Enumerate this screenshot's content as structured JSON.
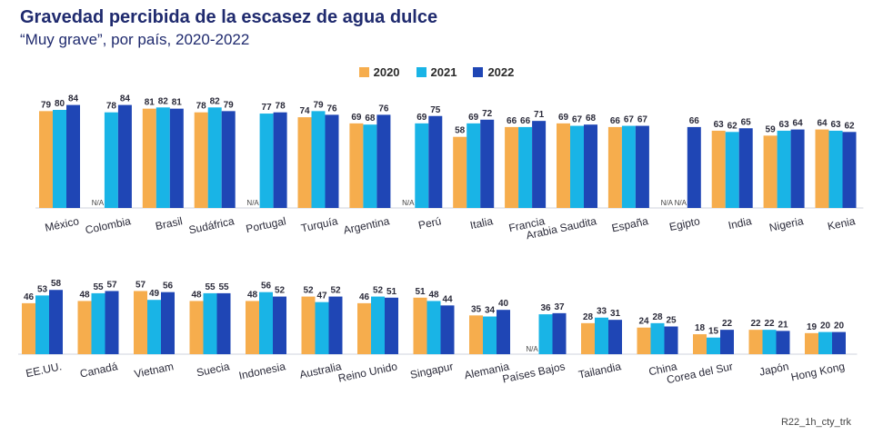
{
  "title": "Gravedad percibida de la escasez de agua dulce",
  "subtitle": "“Muy grave”, por país, 2020-2022",
  "footer": "R22_1h_cty_trk",
  "na_label": "N/A",
  "colors": {
    "2020": "#f6ad4d",
    "2021": "#19b4e6",
    "2022": "#1f46b5"
  },
  "chart_data": {
    "type": "bar",
    "title": "Gravedad percibida de la escasez de agua dulce",
    "subtitle": "“Muy grave”, por país, 2020-2022",
    "series_names": [
      "2020",
      "2021",
      "2022"
    ],
    "legend_position": "top-center",
    "grid": false,
    "ylim": [
      0,
      100
    ],
    "rows": [
      {
        "categories": [
          "México",
          "Colombia",
          "Brasil",
          "Sudáfrica",
          "Portugal",
          "Turquía",
          "Argentina",
          "Perú",
          "Italia",
          "Francia",
          "Arabia Saudita",
          "España",
          "Egipto",
          "India",
          "Nigeria",
          "Kenia"
        ],
        "series": [
          {
            "name": "2020",
            "values": [
              79,
              null,
              81,
              78,
              null,
              74,
              69,
              null,
              58,
              66,
              69,
              66,
              null,
              63,
              59,
              64
            ]
          },
          {
            "name": "2021",
            "values": [
              80,
              78,
              82,
              82,
              77,
              79,
              68,
              69,
              69,
              66,
              67,
              67,
              null,
              62,
              63,
              63
            ]
          },
          {
            "name": "2022",
            "values": [
              84,
              84,
              81,
              79,
              78,
              76,
              76,
              75,
              72,
              71,
              68,
              67,
              66,
              65,
              64,
              62
            ]
          }
        ]
      },
      {
        "categories": [
          "EE.UU.",
          "Canadá",
          "Vietnam",
          "Suecia",
          "Indonesia",
          "Australia",
          "Reino Unido",
          "Singapur",
          "Alemania",
          "Países Bajos",
          "Tailandia",
          "China",
          "Corea del Sur",
          "Japón",
          "Hong Kong"
        ],
        "series": [
          {
            "name": "2020",
            "values": [
              46,
              48,
              57,
              48,
              48,
              52,
              46,
              51,
              35,
              null,
              28,
              24,
              18,
              22,
              19
            ]
          },
          {
            "name": "2021",
            "values": [
              53,
              55,
              49,
              55,
              56,
              47,
              52,
              48,
              34,
              36,
              33,
              28,
              15,
              22,
              20
            ]
          },
          {
            "name": "2022",
            "values": [
              58,
              57,
              56,
              55,
              52,
              52,
              51,
              44,
              40,
              37,
              31,
              25,
              22,
              21,
              20
            ]
          }
        ]
      }
    ]
  }
}
